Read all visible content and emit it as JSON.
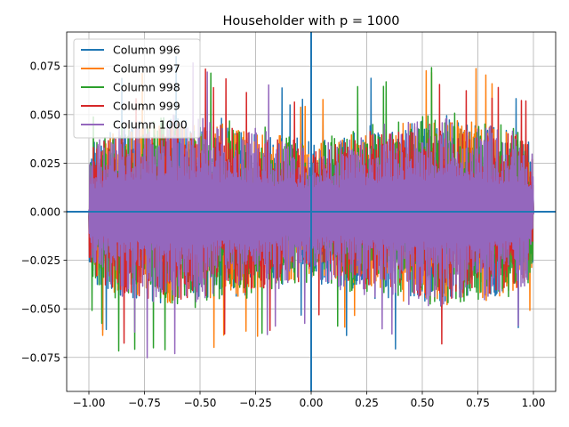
{
  "chart_data": {
    "type": "line",
    "title": "Householder with p = 1000",
    "xlabel": "",
    "ylabel": "",
    "xlim": [
      -1.1,
      1.1
    ],
    "ylim": [
      -0.0925,
      0.0925
    ],
    "xticks": [
      -1.0,
      -0.75,
      -0.5,
      -0.25,
      0.0,
      0.25,
      0.5,
      0.75,
      1.0
    ],
    "xtick_labels": [
      "−1.00",
      "−0.75",
      "−0.50",
      "−0.25",
      "0.00",
      "0.25",
      "0.50",
      "0.75",
      "1.00"
    ],
    "yticks": [
      -0.075,
      -0.05,
      -0.025,
      0.0,
      0.025,
      0.05,
      0.075
    ],
    "ytick_labels": [
      "−0.075",
      "−0.050",
      "−0.025",
      "0.000",
      "0.025",
      "0.050",
      "0.075"
    ],
    "grid": true,
    "legend_position": "upper-left",
    "series": [
      {
        "name": "Column 996",
        "color": "#1f77b4",
        "amplitude": 0.083,
        "samples": 1000,
        "x_range": [
          -1.0,
          1.0
        ]
      },
      {
        "name": "Column 997",
        "color": "#ff7f0e",
        "amplitude": 0.081,
        "samples": 1000,
        "x_range": [
          -1.0,
          1.0
        ]
      },
      {
        "name": "Column 998",
        "color": "#2ca02c",
        "amplitude": 0.084,
        "samples": 1000,
        "x_range": [
          -1.0,
          1.0
        ]
      },
      {
        "name": "Column 999",
        "color": "#d62728",
        "amplitude": 0.078,
        "samples": 1000,
        "x_range": [
          -1.0,
          1.0
        ]
      },
      {
        "name": "Column 1000",
        "color": "#9467bd",
        "amplitude": 0.082,
        "samples": 1000,
        "x_range": [
          -1.0,
          1.0
        ]
      }
    ],
    "axis_lines": [
      {
        "orientation": "horizontal",
        "value": 0.0,
        "color": "#1f77b4"
      },
      {
        "orientation": "vertical",
        "value": 0.0,
        "color": "#1f77b4"
      }
    ]
  }
}
